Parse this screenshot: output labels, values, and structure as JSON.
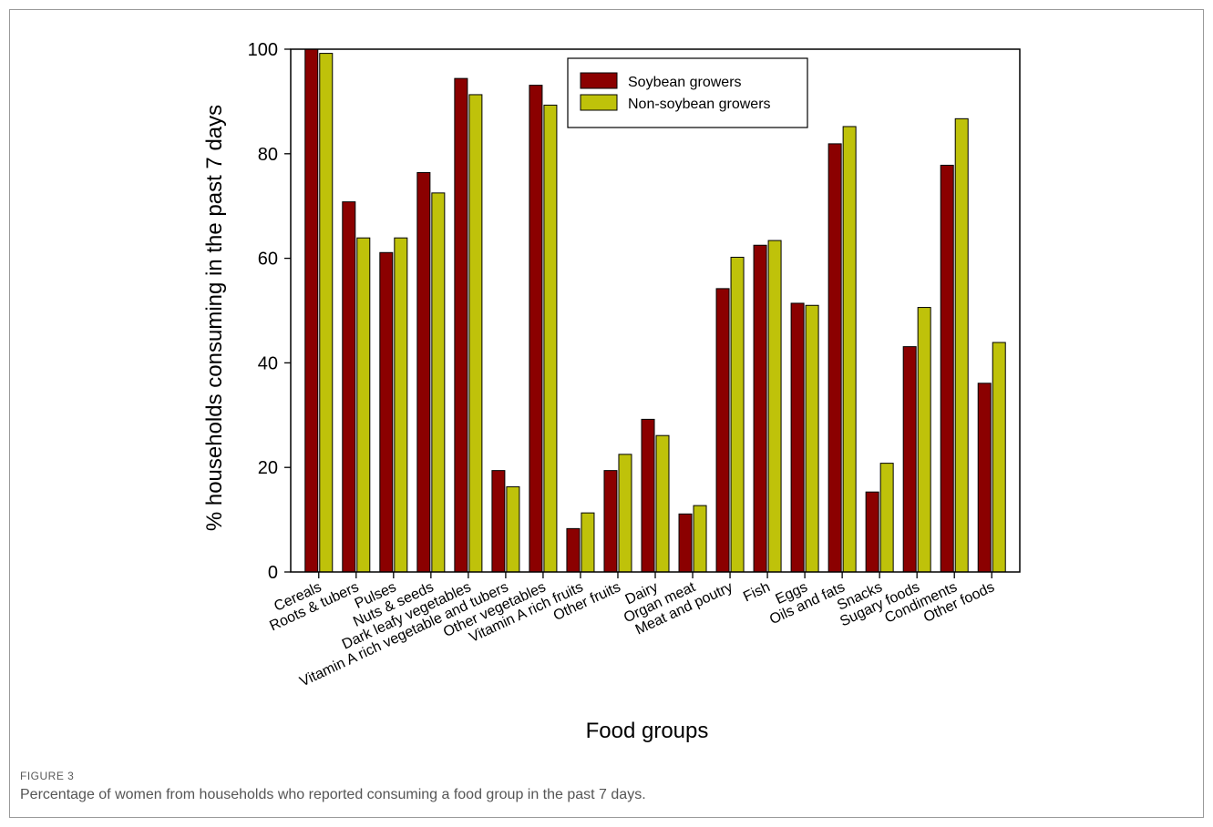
{
  "figure": {
    "label": "FIGURE 3",
    "caption": "Percentage of women from households who reported consuming a food group in the past 7 days."
  },
  "chart_data": {
    "type": "bar",
    "xlabel": "Food groups",
    "ylabel": "% households consuming in the past 7 days",
    "ylim": [
      0,
      100
    ],
    "yticks": [
      0,
      20,
      40,
      60,
      80,
      100
    ],
    "grid": false,
    "legend_position": "top-center",
    "categories": [
      "Cereals",
      "Roots & tubers",
      "Pulses",
      "Nuts & seeds",
      "Dark leafy vegetables",
      "Vitamin A rich vegetable and tubers",
      "Other vegetables",
      "Vitamin A rich fruits",
      "Other fruits",
      "Dairy",
      "Organ meat",
      "Meat and poutry",
      "Fish",
      "Eggs",
      "Oils and fats",
      "Snacks",
      "Sugary foods",
      "Condiments",
      "Other foods"
    ],
    "series": [
      {
        "name": "Soybean growers",
        "color": "#8b0000",
        "values": [
          100,
          70.8,
          61.1,
          76.4,
          94.4,
          19.4,
          93.1,
          8.3,
          19.4,
          29.2,
          11.1,
          54.2,
          62.5,
          51.4,
          81.9,
          15.3,
          43.1,
          77.8,
          36.1
        ]
      },
      {
        "name": "Non-soybean growers",
        "color": "#bfc20a",
        "values": [
          99.2,
          63.9,
          63.9,
          72.5,
          91.3,
          16.3,
          89.3,
          11.3,
          22.5,
          26.1,
          12.7,
          60.2,
          63.4,
          51.0,
          85.2,
          20.8,
          50.6,
          86.7,
          43.9
        ]
      }
    ]
  }
}
